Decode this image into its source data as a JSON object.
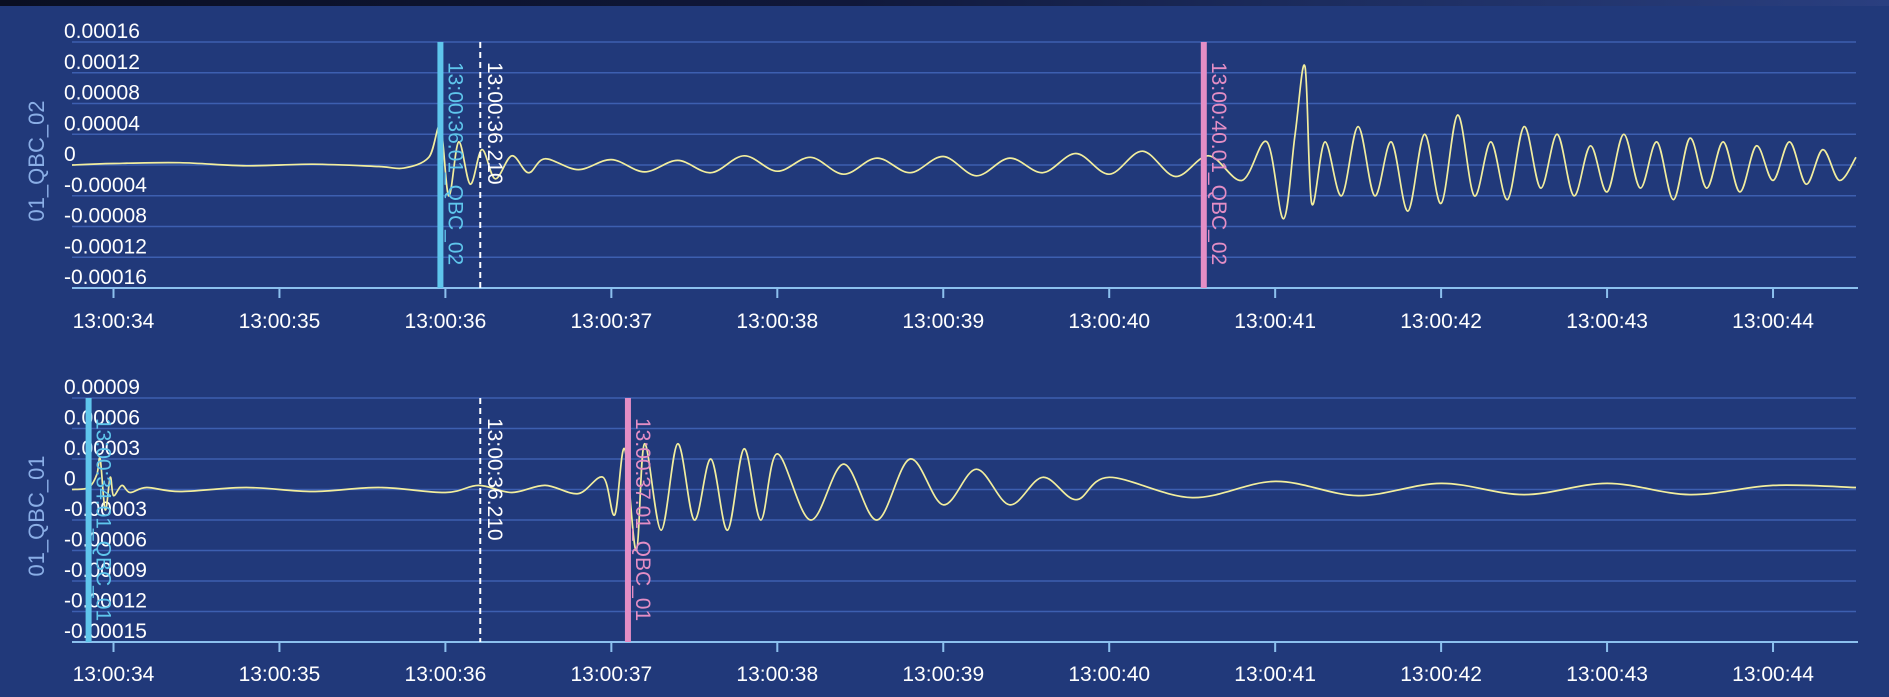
{
  "colors": {
    "background": "#21397a",
    "grid": "#3d5fb0",
    "axis": "#8cc0ee",
    "waveform": "#f2ee9e",
    "p_pick": "#5fc6ec",
    "s_pick": "#e48ec5",
    "cursor": "#ffffff",
    "text": "#ffffff"
  },
  "chart_data": [
    {
      "type": "line",
      "ylabel": "01_QBC_02",
      "x_ticks": [
        "13:00:34",
        "13:00:35",
        "13:00:36",
        "13:00:37",
        "13:00:38",
        "13:00:39",
        "13:00:40",
        "13:00:41",
        "13:00:42",
        "13:00:43",
        "13:00:44"
      ],
      "y_ticks": [
        "0.00016",
        "0.00012",
        "0.00008",
        "0.00004",
        "0",
        "-0.00004",
        "-0.00008",
        "-0.00012",
        "-0.00016"
      ],
      "ylim": [
        -0.00016,
        0.00016
      ],
      "xlim_seconds_after_13_00_34": [
        -0.25,
        10.5
      ],
      "grid": true,
      "series": [
        {
          "x_seconds_after_13_00_34": [
            -0.25,
            0.0,
            0.4,
            0.8,
            1.2,
            1.6,
            1.75,
            1.9,
            1.97,
            2.02,
            2.08,
            2.15,
            2.22,
            2.3,
            2.4,
            2.5,
            2.6,
            2.8,
            3.0,
            3.2,
            3.4,
            3.6,
            3.8,
            4.0,
            4.2,
            4.4,
            4.6,
            4.8,
            5.0,
            5.2,
            5.4,
            5.6,
            5.8,
            6.0,
            6.2,
            6.4,
            6.6,
            6.8,
            6.95,
            7.05,
            7.12,
            7.18,
            7.22,
            7.3,
            7.4,
            7.5,
            7.6,
            7.7,
            7.8,
            7.9,
            8.0,
            8.1,
            8.2,
            8.3,
            8.4,
            8.5,
            8.6,
            8.7,
            8.8,
            8.9,
            9.0,
            9.1,
            9.2,
            9.3,
            9.4,
            9.5,
            9.6,
            9.7,
            9.8,
            9.9,
            10.0,
            10.1,
            10.2,
            10.3,
            10.4,
            10.5
          ],
          "y": [
            0,
            2e-06,
            3e-06,
            -1e-06,
            1e-06,
            -2e-06,
            -4e-06,
            1e-05,
            5e-05,
            -4e-05,
            3e-05,
            -2.5e-05,
            2e-05,
            -1.8e-05,
            1.2e-05,
            -1e-05,
            8e-06,
            -6e-06,
            7e-06,
            -9e-06,
            6e-06,
            -1e-05,
            1.2e-05,
            -8e-06,
            1e-05,
            -1.2e-05,
            9e-06,
            -1e-05,
            1.1e-05,
            -1.4e-05,
            9e-06,
            -1e-05,
            1.5e-05,
            -1.2e-05,
            1.8e-05,
            -1.5e-05,
            1.2e-05,
            -2e-05,
            3e-05,
            -7e-05,
            4e-05,
            0.000128,
            -5e-05,
            3e-05,
            -4e-05,
            5e-05,
            -4e-05,
            3e-05,
            -6e-05,
            4e-05,
            -5e-05,
            6.5e-05,
            -4e-05,
            3e-05,
            -4.5e-05,
            5e-05,
            -3e-05,
            4e-05,
            -4e-05,
            2.5e-05,
            -3.5e-05,
            4e-05,
            -3e-05,
            3e-05,
            -4.5e-05,
            3.5e-05,
            -3e-05,
            3e-05,
            -3.5e-05,
            2.5e-05,
            -2e-05,
            3e-05,
            -2.5e-05,
            2e-05,
            -2e-05,
            1e-05
          ]
        }
      ],
      "annotations": [
        {
          "kind": "p-pick",
          "label": "13:00:36.01_QBC_02",
          "x_seconds_after_13_00_34": 1.97
        },
        {
          "kind": "cursor",
          "label": "13:00:36.210",
          "x_seconds_after_13_00_34": 2.21
        },
        {
          "kind": "s-pick",
          "label": "13:00:40.01_QBC_02",
          "x_seconds_after_13_00_34": 6.57
        }
      ]
    },
    {
      "type": "line",
      "ylabel": "01_QBC_01",
      "x_ticks": [
        "13:00:34",
        "13:00:35",
        "13:00:36",
        "13:00:37",
        "13:00:38",
        "13:00:39",
        "13:00:40",
        "13:00:41",
        "13:00:42",
        "13:00:43",
        "13:00:44"
      ],
      "y_ticks": [
        "0.00009",
        "0.00006",
        "0.00003",
        "0",
        "-0.00003",
        "-0.00006",
        "-0.00009",
        "-0.00012",
        "-0.00015"
      ],
      "ylim": [
        -0.00015,
        9e-05
      ],
      "xlim_seconds_after_13_00_34": [
        -0.25,
        10.5
      ],
      "grid": true,
      "series": [
        {
          "x_seconds_after_13_00_34": [
            -0.25,
            -0.15,
            -0.1,
            -0.08,
            -0.05,
            -0.02,
            0.0,
            0.05,
            0.1,
            0.2,
            0.4,
            0.8,
            1.2,
            1.6,
            2.0,
            2.2,
            2.4,
            2.6,
            2.8,
            2.95,
            3.02,
            3.08,
            3.15,
            3.2,
            3.3,
            3.4,
            3.5,
            3.6,
            3.7,
            3.8,
            3.9,
            4.0,
            4.2,
            4.4,
            4.6,
            4.8,
            5.0,
            5.2,
            5.4,
            5.6,
            5.8,
            6.0,
            6.5,
            7.0,
            7.5,
            8.0,
            8.5,
            9.0,
            9.5,
            10.0,
            10.5
          ],
          "y": [
            0,
            2e-06,
            1.5e-05,
            3e-05,
            -2e-05,
            1.2e-05,
            -6e-06,
            4e-06,
            -3e-06,
            2e-06,
            -2e-06,
            2e-06,
            -2e-06,
            2e-06,
            -3e-06,
            4e-06,
            -3e-06,
            4e-06,
            -4e-06,
            1.2e-05,
            -2.5e-05,
            4e-05,
            -6e-05,
            4.5e-05,
            -4e-05,
            4.5e-05,
            -3e-05,
            3e-05,
            -4e-05,
            4e-05,
            -3e-05,
            3.5e-05,
            -3e-05,
            2.5e-05,
            -3e-05,
            3e-05,
            -1.5e-05,
            2e-05,
            -1.5e-05,
            1.2e-05,
            -1e-05,
            1.2e-05,
            -8e-06,
            8e-06,
            -6e-06,
            6e-06,
            -5e-06,
            6e-06,
            -5e-06,
            4e-06,
            2e-06
          ]
        }
      ],
      "annotations": [
        {
          "kind": "p-pick",
          "label": "13:00:34.01_QBC_01",
          "x_seconds_after_13_00_34": -0.15
        },
        {
          "kind": "cursor",
          "label": "13:00:36.210",
          "x_seconds_after_13_00_34": 2.21
        },
        {
          "kind": "s-pick",
          "label": "13:00:37.01_QBC_01",
          "x_seconds_after_13_00_34": 3.1
        }
      ]
    }
  ]
}
